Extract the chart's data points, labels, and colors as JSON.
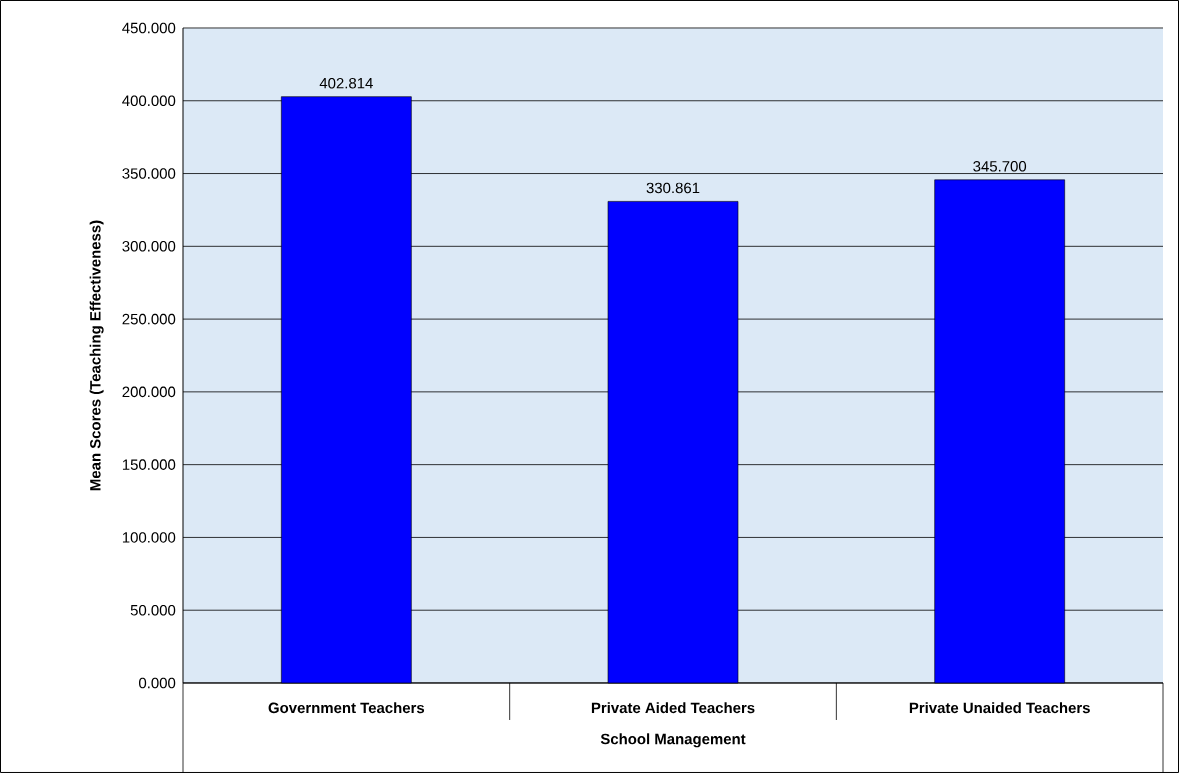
{
  "chart_data": {
    "type": "bar",
    "xlabel": "School Management",
    "ylabel": "Mean Scores (Teaching Effectiveness)",
    "categories": [
      "Government Teachers",
      "Private Aided Teachers",
      "Private Unaided Teachers"
    ],
    "values": [
      402.814,
      330.861,
      345.7
    ],
    "value_labels": [
      "402.814",
      "330.861",
      "345.700"
    ],
    "color": "#0000ff",
    "ylim": [
      0,
      450
    ],
    "yticks": [
      {
        "value": 0,
        "label": "0.000"
      },
      {
        "value": 50,
        "label": "50.000"
      },
      {
        "value": 100,
        "label": "100.000"
      },
      {
        "value": 150,
        "label": "150.000"
      },
      {
        "value": 200,
        "label": "200.000"
      },
      {
        "value": 250,
        "label": "250.000"
      },
      {
        "value": 300,
        "label": "300.000"
      },
      {
        "value": 350,
        "label": "350.000"
      },
      {
        "value": 400,
        "label": "400.000"
      },
      {
        "value": 450,
        "label": "450.000"
      }
    ],
    "grid": "y"
  }
}
